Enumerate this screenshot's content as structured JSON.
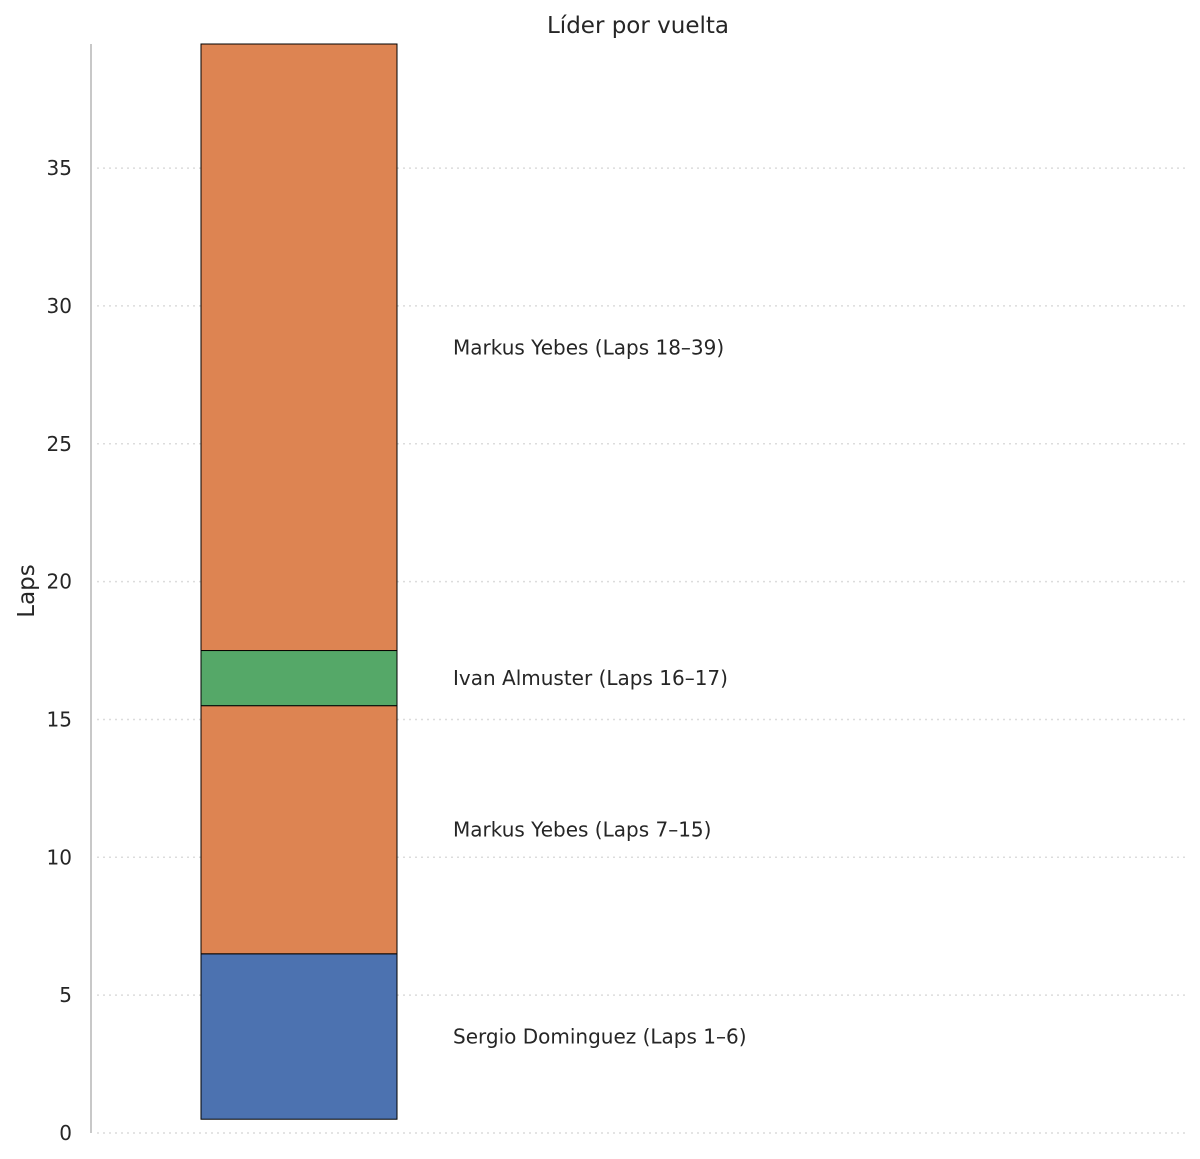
{
  "chart_data": {
    "type": "bar",
    "title": "Líder por vuelta",
    "xlabel": "",
    "ylabel": "Laps",
    "ylim": [
      0,
      39.5
    ],
    "yticks": [
      0,
      5,
      10,
      15,
      20,
      25,
      30,
      35
    ],
    "segments": [
      {
        "driver": "Sergio Dominguez",
        "start": 1,
        "end": 6,
        "label": "Sergio Dominguez (Laps 1–6)",
        "color": "#4c72b0"
      },
      {
        "driver": "Markus Yebes",
        "start": 7,
        "end": 15,
        "label": "Markus Yebes (Laps 7–15)",
        "color": "#dd8452"
      },
      {
        "driver": "Ivan Almuster",
        "start": 16,
        "end": 17,
        "label": "Ivan Almuster (Laps 16–17)",
        "color": "#55a868"
      },
      {
        "driver": "Markus Yebes",
        "start": 18,
        "end": 39,
        "label": "Markus Yebes (Laps 18–39)",
        "color": "#dd8452"
      }
    ]
  }
}
